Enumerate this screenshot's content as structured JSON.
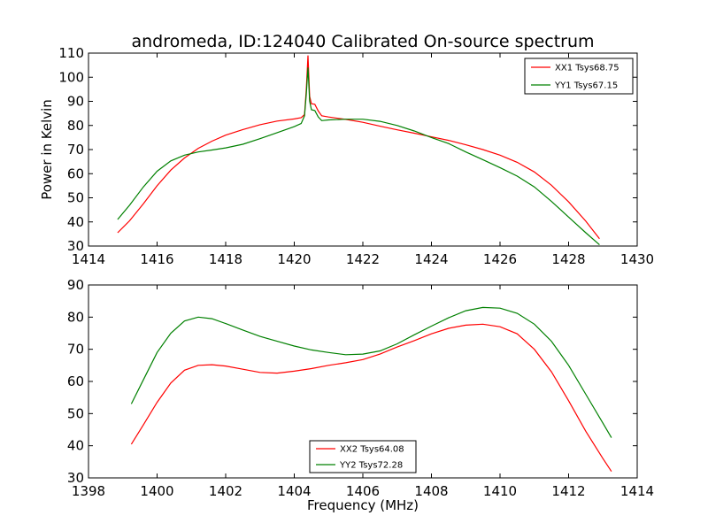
{
  "figure": {
    "title": "andromeda, ID:124040 Calibrated On-source spectrum",
    "xlabel": "Frequency (MHz)"
  },
  "chart_data": [
    {
      "type": "line",
      "title": "andromeda, ID:124040 Calibrated On-source spectrum",
      "xlabel": "",
      "ylabel": "Power in Kelvin",
      "xlim": [
        1414,
        1430
      ],
      "ylim": [
        30,
        110
      ],
      "xticks": [
        1414,
        1416,
        1418,
        1420,
        1422,
        1424,
        1426,
        1428,
        1430
      ],
      "yticks": [
        30,
        40,
        50,
        60,
        70,
        80,
        90,
        100,
        110
      ],
      "grid": false,
      "legend": "top-right",
      "series": [
        {
          "name": "XX1 Tsys68.75",
          "color": "#ff0000",
          "x": [
            1414.85,
            1415.2,
            1415.6,
            1416.0,
            1416.4,
            1416.8,
            1417.2,
            1417.6,
            1418.0,
            1418.5,
            1419.0,
            1419.5,
            1420.0,
            1420.2,
            1420.3,
            1420.35,
            1420.4,
            1420.45,
            1420.5,
            1420.6,
            1420.7,
            1420.8,
            1421.0,
            1421.5,
            1422.0,
            1422.5,
            1423.0,
            1423.5,
            1424.0,
            1424.5,
            1425.0,
            1425.5,
            1426.0,
            1426.5,
            1427.0,
            1427.5,
            1428.0,
            1428.5,
            1428.9
          ],
          "values": [
            35.5,
            40.5,
            47.5,
            55.0,
            61.5,
            66.5,
            70.5,
            73.5,
            76.0,
            78.3,
            80.3,
            81.8,
            82.7,
            83.2,
            84.5,
            95.0,
            109.0,
            92.0,
            89.0,
            88.8,
            86.0,
            84.0,
            83.5,
            82.5,
            81.3,
            79.7,
            78.2,
            76.8,
            75.3,
            73.8,
            72.0,
            70.0,
            67.7,
            64.7,
            60.7,
            55.2,
            48.3,
            40.3,
            33.0
          ]
        },
        {
          "name": "YY1 Tsys67.15",
          "color": "#008000",
          "x": [
            1414.85,
            1415.2,
            1415.6,
            1416.0,
            1416.4,
            1416.8,
            1417.2,
            1417.6,
            1418.0,
            1418.5,
            1419.0,
            1419.5,
            1420.0,
            1420.2,
            1420.3,
            1420.35,
            1420.4,
            1420.45,
            1420.5,
            1420.6,
            1420.7,
            1420.8,
            1421.0,
            1421.5,
            1422.0,
            1422.5,
            1423.0,
            1423.5,
            1424.0,
            1424.5,
            1425.0,
            1425.5,
            1426.0,
            1426.5,
            1427.0,
            1427.5,
            1428.0,
            1428.5,
            1428.9
          ],
          "values": [
            41.0,
            47.0,
            54.5,
            61.0,
            65.3,
            67.7,
            69.0,
            69.8,
            70.7,
            72.2,
            74.5,
            77.0,
            79.5,
            80.8,
            84.0,
            93.0,
            104.0,
            90.0,
            86.5,
            86.2,
            83.5,
            82.0,
            82.3,
            82.6,
            82.6,
            81.7,
            80.0,
            77.7,
            75.0,
            72.5,
            69.0,
            65.8,
            62.5,
            59.0,
            54.5,
            48.5,
            42.0,
            35.5,
            30.5
          ]
        }
      ]
    },
    {
      "type": "line",
      "title": "",
      "xlabel": "Frequency (MHz)",
      "ylabel": "",
      "xlim": [
        1398,
        1414
      ],
      "ylim": [
        30,
        90
      ],
      "xticks": [
        1398,
        1400,
        1402,
        1404,
        1406,
        1408,
        1410,
        1412,
        1414
      ],
      "yticks": [
        30,
        40,
        50,
        60,
        70,
        80,
        90
      ],
      "grid": false,
      "legend": "bottom-center",
      "series": [
        {
          "name": "XX2 Tsys64.08",
          "color": "#ff0000",
          "x": [
            1399.25,
            1399.6,
            1400.0,
            1400.4,
            1400.8,
            1401.2,
            1401.6,
            1402.0,
            1402.5,
            1403.0,
            1403.5,
            1404.0,
            1404.5,
            1405.0,
            1405.5,
            1406.0,
            1406.5,
            1407.0,
            1407.5,
            1408.0,
            1408.5,
            1409.0,
            1409.5,
            1410.0,
            1410.5,
            1411.0,
            1411.5,
            1412.0,
            1412.5,
            1413.0,
            1413.25
          ],
          "values": [
            40.5,
            46.5,
            53.5,
            59.5,
            63.5,
            65.0,
            65.2,
            64.8,
            63.8,
            62.8,
            62.6,
            63.2,
            64.0,
            65.0,
            65.8,
            66.8,
            68.5,
            70.7,
            72.7,
            74.8,
            76.5,
            77.5,
            77.8,
            77.0,
            74.8,
            70.0,
            63.0,
            54.0,
            44.5,
            36.0,
            32.0
          ]
        },
        {
          "name": "YY2 Tsys72.28",
          "color": "#008000",
          "x": [
            1399.25,
            1399.6,
            1400.0,
            1400.4,
            1400.8,
            1401.2,
            1401.6,
            1402.0,
            1402.5,
            1403.0,
            1403.5,
            1404.0,
            1404.5,
            1405.0,
            1405.5,
            1406.0,
            1406.5,
            1407.0,
            1407.5,
            1408.0,
            1408.5,
            1409.0,
            1409.5,
            1410.0,
            1410.5,
            1411.0,
            1411.5,
            1412.0,
            1412.5,
            1413.0,
            1413.25
          ],
          "values": [
            53.0,
            60.5,
            69.0,
            75.0,
            78.8,
            80.0,
            79.5,
            78.0,
            76.0,
            74.0,
            72.5,
            71.0,
            69.8,
            69.0,
            68.3,
            68.5,
            69.5,
            71.7,
            74.5,
            77.2,
            79.8,
            82.0,
            83.0,
            82.8,
            81.2,
            77.8,
            72.5,
            65.0,
            56.0,
            47.0,
            42.5
          ]
        }
      ]
    }
  ]
}
